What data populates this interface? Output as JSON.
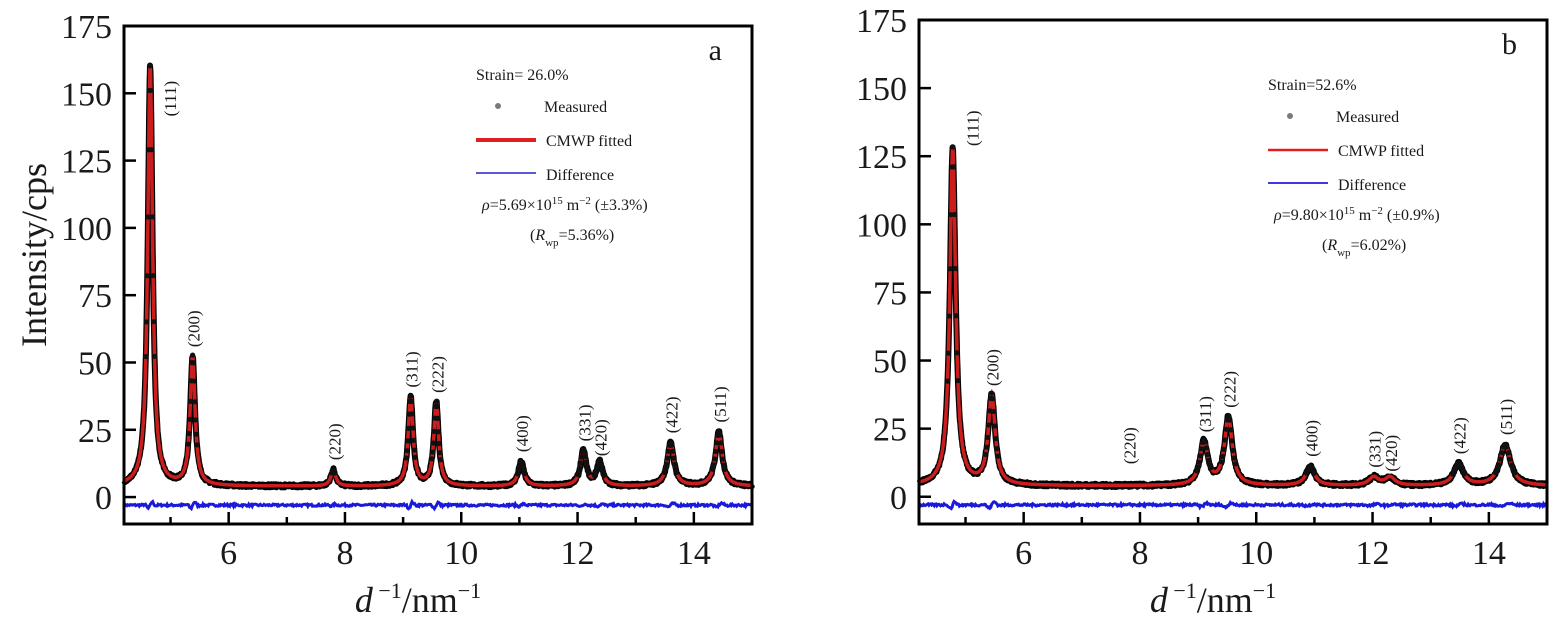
{
  "figure": {
    "ylabel": "Intensity/cps",
    "xlabel_main": "d",
    "xlabel_sup1": " −1",
    "xlabel_unit": "/nm",
    "xlabel_sup2": "−1"
  },
  "chart_data": [
    {
      "type": "line",
      "panel": "a",
      "title": "",
      "xlabel": "d⁻¹/nm⁻¹",
      "ylabel": "Intensity/cps",
      "xlim": [
        4.2,
        15.0
      ],
      "ylim": [
        -10,
        175
      ],
      "xticks": [
        6,
        8,
        10,
        12,
        14
      ],
      "xminor": [
        5,
        7,
        9,
        11,
        13
      ],
      "yticks": [
        0,
        25,
        50,
        75,
        100,
        125,
        150,
        175
      ],
      "grid": false,
      "legend_placement": "top-right",
      "annotation": {
        "strain": "Strain= 26.0%",
        "rho_prefix": "ρ=5.69×10",
        "rho_exp": "15",
        "rho_unit": " m",
        "rho_unit_exp": "−2",
        "rho_err": " (±3.3%)",
        "rwp_open": "(R",
        "rwp_sub": "wp",
        "rwp_val": "=5.36%)"
      },
      "legend": [
        {
          "label": "Measured",
          "style": "dot",
          "color": "#7a7a7a"
        },
        {
          "label": "CMWP fitted",
          "style": "thick-line",
          "color": "#e02020"
        },
        {
          "label": "Difference",
          "style": "line",
          "color": "#5a5ad0"
        }
      ],
      "baseline": 4,
      "difference_offset": -3,
      "peaks": [
        {
          "hkl": "(111)",
          "x": 4.65,
          "y": 160,
          "width": 0.05
        },
        {
          "hkl": "(200)",
          "x": 5.38,
          "y": 52,
          "width": 0.05
        },
        {
          "hkl": "(220)",
          "x": 7.8,
          "y": 10,
          "width": 0.05
        },
        {
          "hkl": "(311)",
          "x": 9.13,
          "y": 37,
          "width": 0.05
        },
        {
          "hkl": "(222)",
          "x": 9.57,
          "y": 35,
          "width": 0.05
        },
        {
          "hkl": "(400)",
          "x": 11.03,
          "y": 13,
          "width": 0.06
        },
        {
          "hkl": "(331)",
          "x": 12.1,
          "y": 17,
          "width": 0.06
        },
        {
          "hkl": "(420)",
          "x": 12.38,
          "y": 13,
          "width": 0.06
        },
        {
          "hkl": "(422)",
          "x": 13.6,
          "y": 20,
          "width": 0.07
        },
        {
          "hkl": "(511)",
          "x": 14.43,
          "y": 24,
          "width": 0.07
        }
      ],
      "series": [
        {
          "name": "Measured",
          "color": "#000000"
        },
        {
          "name": "CMWP fitted",
          "color": "#e02020"
        },
        {
          "name": "Difference",
          "color": "#1a1adb"
        }
      ]
    },
    {
      "type": "line",
      "panel": "b",
      "title": "",
      "xlabel": "d⁻¹/nm⁻¹",
      "ylabel": "",
      "xlim": [
        4.2,
        15.0
      ],
      "ylim": [
        -10,
        175
      ],
      "xticks": [
        6,
        8,
        10,
        12,
        14
      ],
      "xminor": [
        5,
        7,
        9,
        11,
        13
      ],
      "yticks": [
        0,
        25,
        50,
        75,
        100,
        125,
        150,
        175
      ],
      "grid": false,
      "legend_placement": "top-right",
      "annotation": {
        "strain": "Strain=52.6%",
        "rho_prefix": "ρ=9.80×10",
        "rho_exp": "15",
        "rho_unit": " m",
        "rho_unit_exp": "−2",
        "rho_err": " (±0.9%)",
        "rwp_open": "(R",
        "rwp_sub": "wp",
        "rwp_val": "=6.02%)"
      },
      "legend": [
        {
          "label": "Measured",
          "style": "dot",
          "color": "#7a7a7a"
        },
        {
          "label": "CMWP fitted",
          "style": "line",
          "color": "#e02020"
        },
        {
          "label": "Difference",
          "style": "line",
          "color": "#3a3ae0"
        }
      ],
      "baseline": 4,
      "difference_offset": -3,
      "peaks": [
        {
          "hkl": "(111)",
          "x": 4.78,
          "y": 128,
          "width": 0.06
        },
        {
          "hkl": "(200)",
          "x": 5.45,
          "y": 37,
          "width": 0.07
        },
        {
          "hkl": "(220)",
          "x": 7.8,
          "y": 4,
          "width": 0.07
        },
        {
          "hkl": "(311)",
          "x": 9.1,
          "y": 20,
          "width": 0.08
        },
        {
          "hkl": "(222)",
          "x": 9.52,
          "y": 29,
          "width": 0.08
        },
        {
          "hkl": "(400)",
          "x": 10.93,
          "y": 11,
          "width": 0.09
        },
        {
          "hkl": "(331)",
          "x": 12.02,
          "y": 7,
          "width": 0.1
        },
        {
          "hkl": "(420)",
          "x": 12.3,
          "y": 7,
          "width": 0.1
        },
        {
          "hkl": "(422)",
          "x": 13.48,
          "y": 12,
          "width": 0.1
        },
        {
          "hkl": "(511)",
          "x": 14.28,
          "y": 19,
          "width": 0.11
        }
      ],
      "series": [
        {
          "name": "Measured",
          "color": "#000000"
        },
        {
          "name": "CMWP fitted",
          "color": "#e02020"
        },
        {
          "name": "Difference",
          "color": "#1a1adb"
        }
      ]
    }
  ]
}
